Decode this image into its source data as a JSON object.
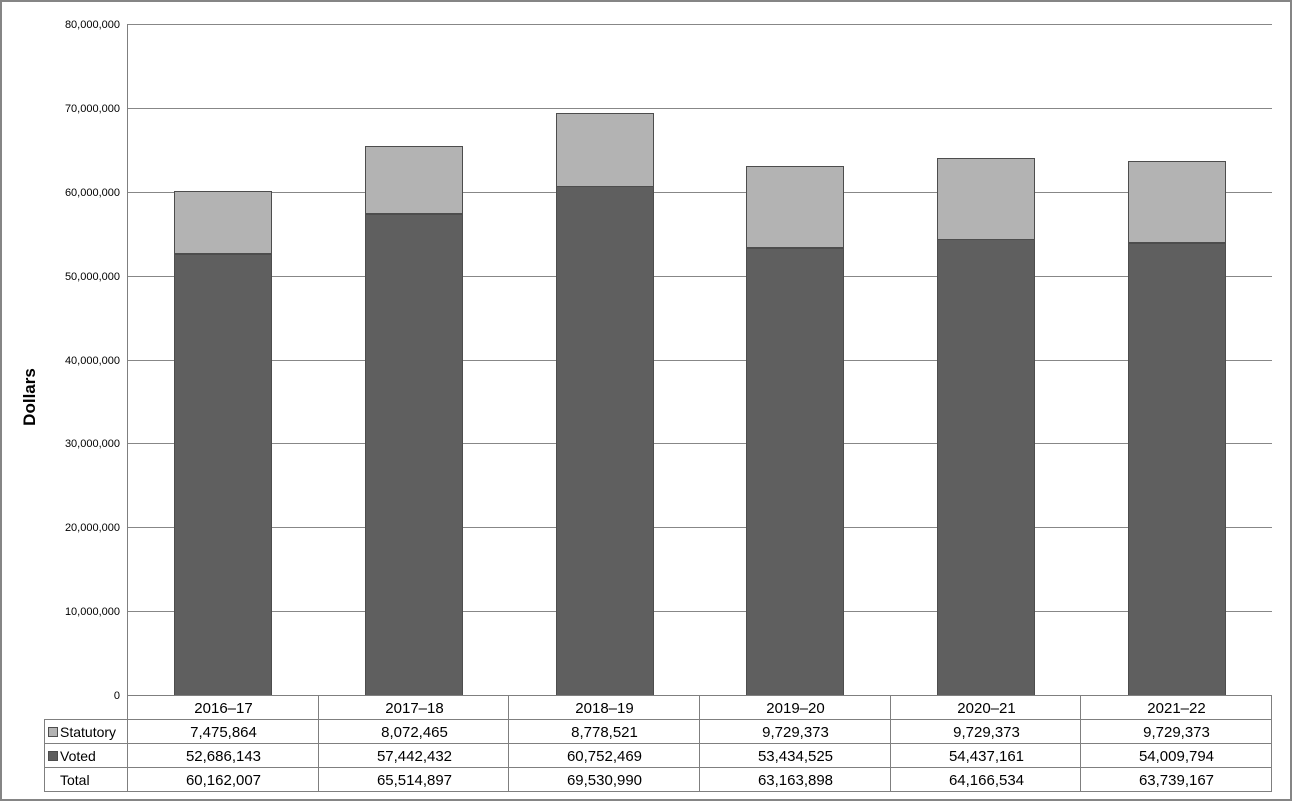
{
  "chart_data": {
    "type": "bar",
    "stacked": true,
    "title": "",
    "ylabel": "Dollars",
    "xlabel": "",
    "categories": [
      "2016–17",
      "2017–18",
      "2018–19",
      "2019–20",
      "2020–21",
      "2021–22"
    ],
    "series": [
      {
        "name": "Statutory",
        "color": "#b3b3b3",
        "values": [
          7475864,
          8072465,
          8778521,
          9729373,
          9729373,
          9729373
        ]
      },
      {
        "name": "Voted",
        "color": "#5f5f5f",
        "values": [
          52686143,
          57442432,
          60752469,
          53434525,
          54437161,
          54009794
        ]
      }
    ],
    "totals": [
      60162007,
      65514897,
      69530990,
      63163898,
      64166534,
      63739167
    ],
    "ylim": [
      0,
      80000000
    ],
    "ytick_labels": [
      "0",
      "10,000,000",
      "20,000,000",
      "30,000,000",
      "40,000,000",
      "50,000,000",
      "60,000,000",
      "70,000,000",
      "80,000,000"
    ],
    "grid": true,
    "legend_position": "table-left"
  },
  "table": {
    "header": [
      "2016–17",
      "2017–18",
      "2018–19",
      "2019–20",
      "2020–21",
      "2021–22"
    ],
    "rows": [
      {
        "label": "Statutory",
        "swatch": "#b3b3b3",
        "values": [
          "7,475,864",
          "8,072,465",
          "8,778,521",
          "9,729,373",
          "9,729,373",
          "9,729,373"
        ]
      },
      {
        "label": "Voted",
        "swatch": "#5f5f5f",
        "values": [
          "52,686,143",
          "57,442,432",
          "60,752,469",
          "53,434,525",
          "54,437,161",
          "54,009,794"
        ]
      },
      {
        "label": "Total",
        "swatch": null,
        "values": [
          "60,162,007",
          "65,514,897",
          "69,530,990",
          "63,163,898",
          "64,166,534",
          "63,739,167"
        ]
      }
    ]
  },
  "colors": {
    "statutory": "#b3b3b3",
    "voted": "#5f5f5f",
    "bar_border": "#4d4d4d",
    "gridline": "#878787",
    "axis": "#7f7f7f",
    "table_border": "#7f7f7f",
    "frame": "#858585"
  }
}
